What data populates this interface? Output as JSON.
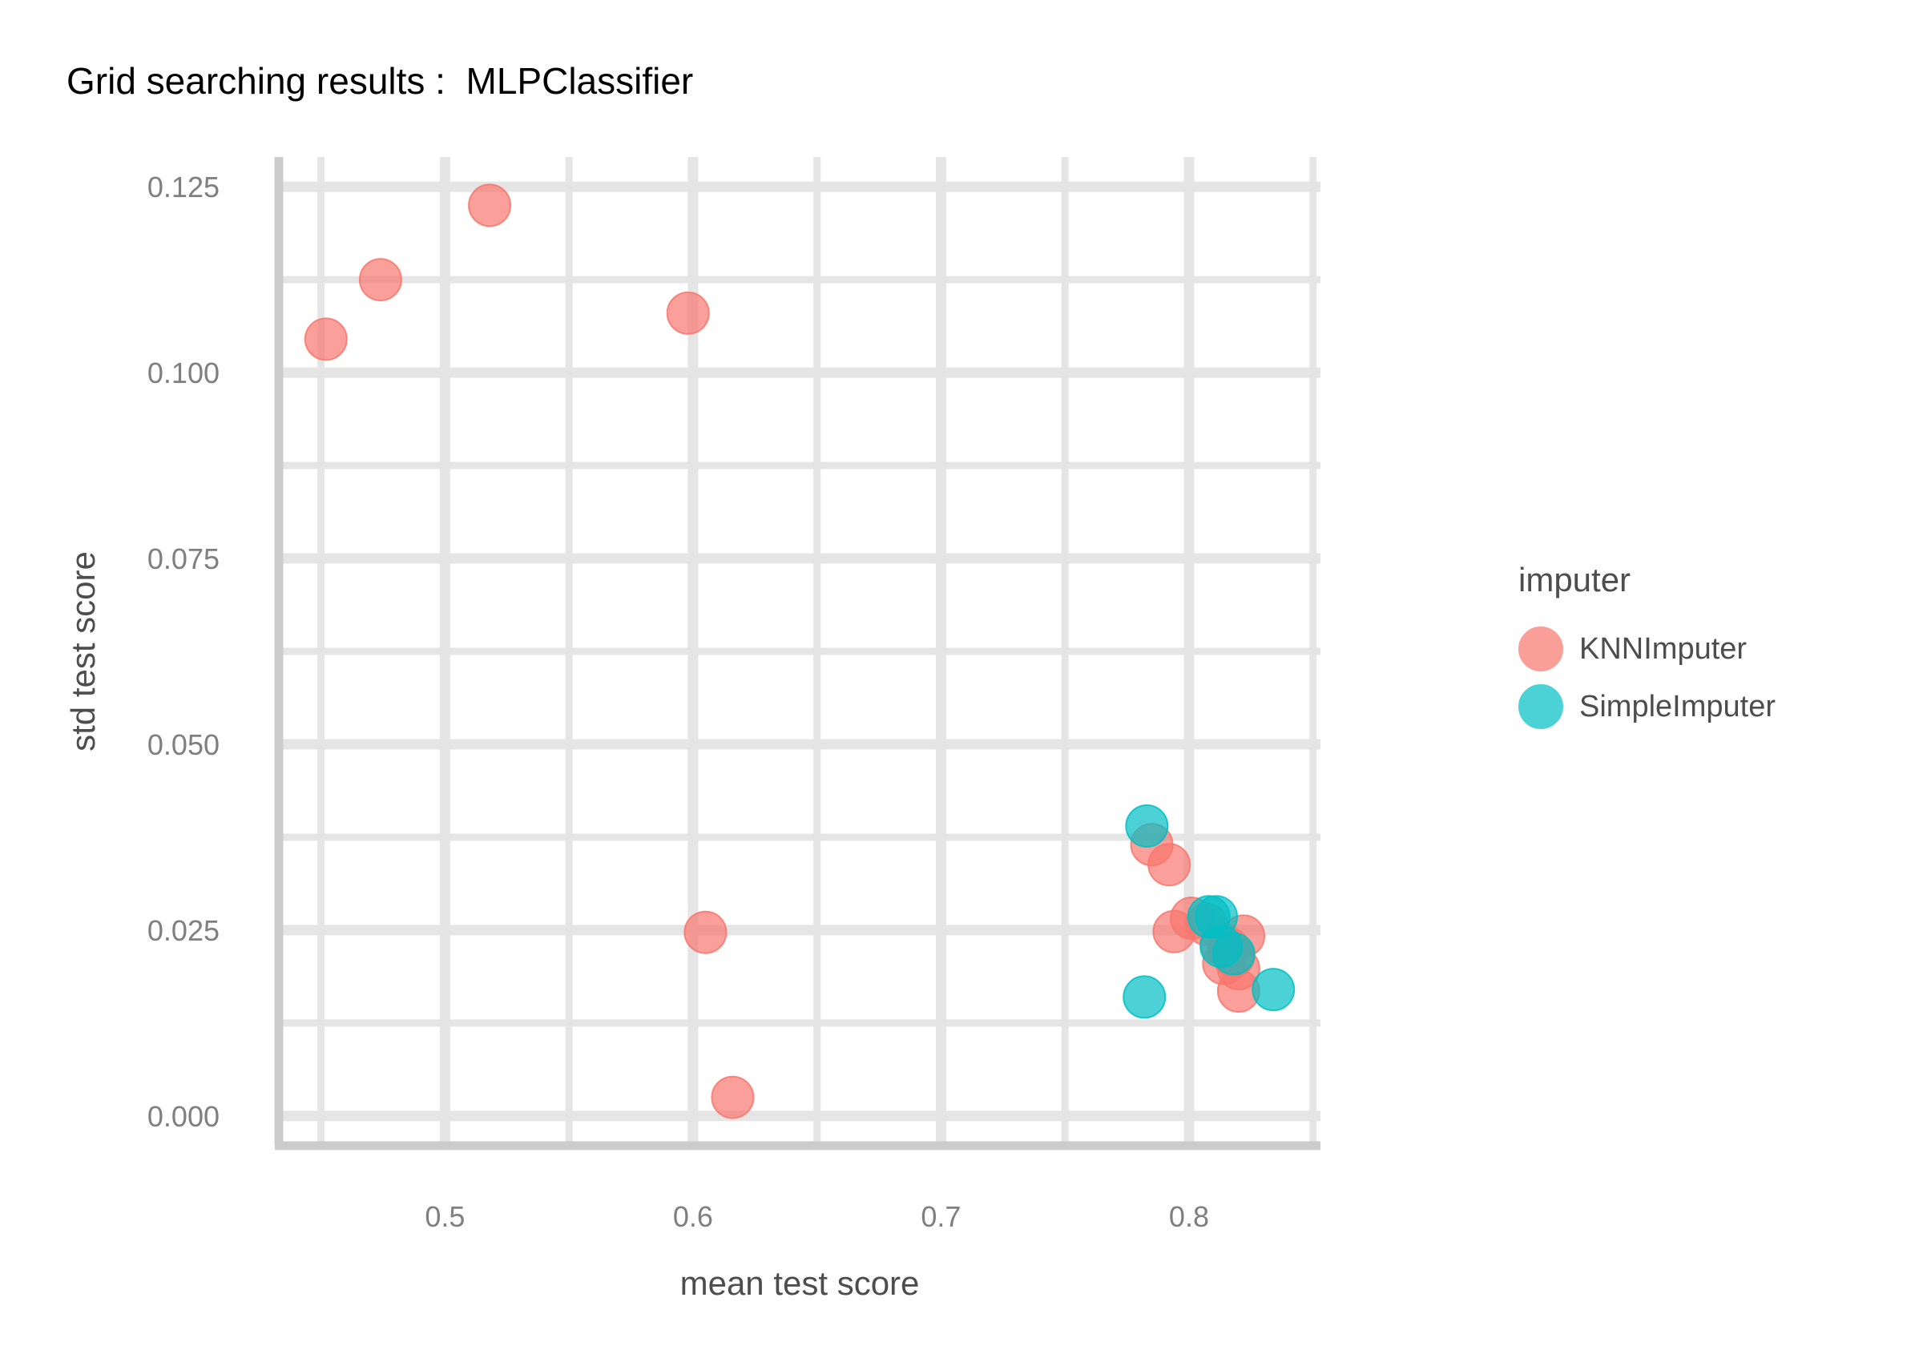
{
  "chart_data": {
    "type": "scatter",
    "title": "Grid searching results :  MLPClassifier",
    "xlabel": "mean test score",
    "ylabel": "std test score",
    "xlim": [
      0.433,
      0.853
    ],
    "ylim": [
      -0.004,
      0.129
    ],
    "x_ticks": [
      0.5,
      0.6,
      0.7,
      0.8
    ],
    "x_tick_labels": [
      "0.5",
      "0.6",
      "0.7",
      "0.8"
    ],
    "y_ticks": [
      0.0,
      0.025,
      0.05,
      0.075,
      0.1,
      0.125
    ],
    "y_tick_labels": [
      "0.000",
      "0.025",
      "0.050",
      "0.075",
      "0.100",
      "0.125"
    ],
    "grid": true,
    "legend": {
      "title": "imputer",
      "position": "right"
    },
    "series": [
      {
        "name": "KNNImputer",
        "color": "#f8766d",
        "points": [
          {
            "x": 0.518,
            "y": 0.1225
          },
          {
            "x": 0.474,
            "y": 0.1125
          },
          {
            "x": 0.452,
            "y": 0.1045
          },
          {
            "x": 0.598,
            "y": 0.108
          },
          {
            "x": 0.605,
            "y": 0.0247
          },
          {
            "x": 0.616,
            "y": 0.0025
          },
          {
            "x": 0.785,
            "y": 0.0365
          },
          {
            "x": 0.792,
            "y": 0.0338
          },
          {
            "x": 0.794,
            "y": 0.0248
          },
          {
            "x": 0.801,
            "y": 0.0266
          },
          {
            "x": 0.807,
            "y": 0.0258
          },
          {
            "x": 0.813,
            "y": 0.0232
          },
          {
            "x": 0.816,
            "y": 0.0225
          },
          {
            "x": 0.818,
            "y": 0.0215
          },
          {
            "x": 0.814,
            "y": 0.0205
          },
          {
            "x": 0.822,
            "y": 0.0242
          },
          {
            "x": 0.82,
            "y": 0.0198
          },
          {
            "x": 0.82,
            "y": 0.0168
          }
        ]
      },
      {
        "name": "SimpleImputer",
        "color": "#00bfc4",
        "points": [
          {
            "x": 0.783,
            "y": 0.039
          },
          {
            "x": 0.782,
            "y": 0.016
          },
          {
            "x": 0.808,
            "y": 0.0268
          },
          {
            "x": 0.811,
            "y": 0.0268
          },
          {
            "x": 0.813,
            "y": 0.0228
          },
          {
            "x": 0.818,
            "y": 0.0218
          },
          {
            "x": 0.834,
            "y": 0.017
          }
        ]
      }
    ]
  }
}
